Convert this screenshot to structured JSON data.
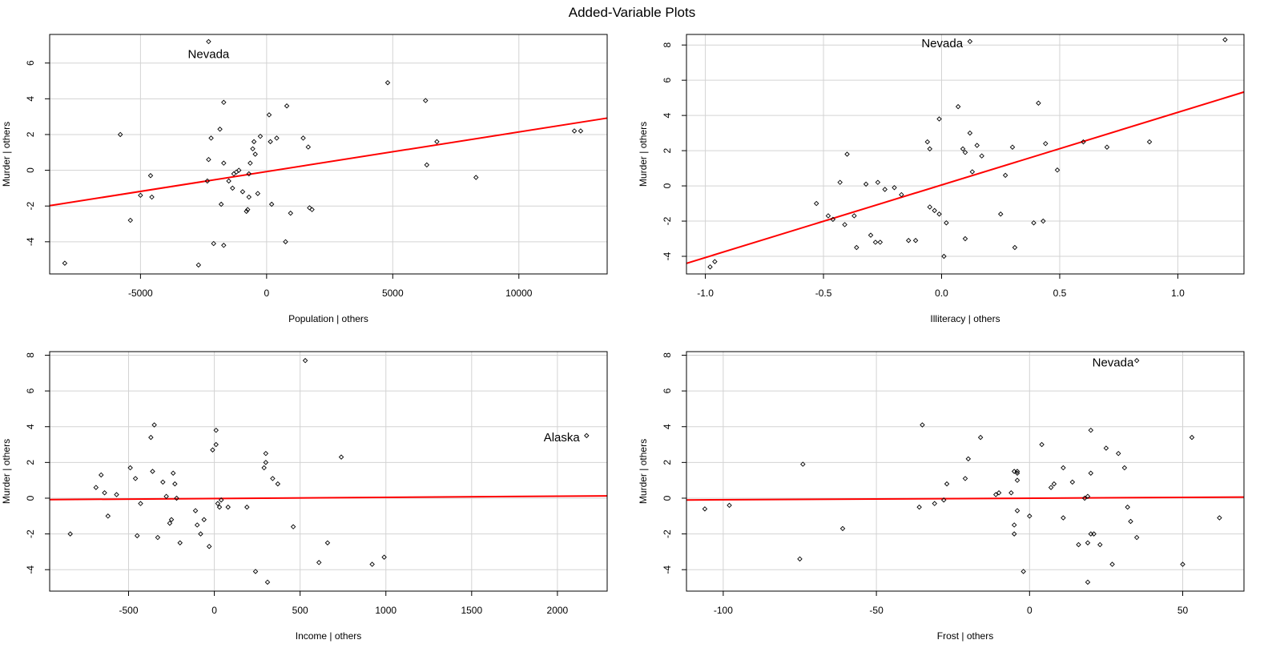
{
  "title": "Added-Variable Plots",
  "colors": {
    "fit_line": "#ff0000",
    "grid": "#d3d3d3",
    "points": "#000000",
    "frame": "#000000"
  },
  "chart_data": [
    {
      "type": "scatter",
      "xlabel": "Population | others",
      "ylabel": "Murder  | others",
      "xlim": [
        -8600,
        13500
      ],
      "ylim": [
        -5.8,
        7.6
      ],
      "xticks": [
        -5000,
        0,
        5000,
        10000
      ],
      "yticks": [
        -4,
        -2,
        0,
        2,
        4,
        6
      ],
      "xtick_labels": [
        "-5000",
        "0",
        "5000",
        "10000"
      ],
      "ytick_labels": [
        "-4",
        "-2",
        "0",
        "2",
        "4",
        "6"
      ],
      "grid": true,
      "fit_line": {
        "x": [
          -8600,
          13500
        ],
        "y": [
          -1.98,
          2.92
        ]
      },
      "annotations": [
        {
          "text": "Nevada",
          "x": -2300,
          "y": 6.5,
          "anchor": "middle"
        }
      ],
      "points": [
        [
          -8000,
          -5.2
        ],
        [
          -5800,
          2.0
        ],
        [
          -5400,
          -2.8
        ],
        [
          -5000,
          -1.4
        ],
        [
          -4600,
          -0.3
        ],
        [
          -4550,
          -1.5
        ],
        [
          -2700,
          -5.3
        ],
        [
          -2350,
          -0.6
        ],
        [
          -2300,
          0.6
        ],
        [
          -2300,
          7.2
        ],
        [
          -2200,
          1.8
        ],
        [
          -2100,
          -4.1
        ],
        [
          -1850,
          2.3
        ],
        [
          -1800,
          -1.9
        ],
        [
          -1700,
          3.8
        ],
        [
          -1700,
          0.4
        ],
        [
          -1700,
          -4.2
        ],
        [
          -1500,
          -0.6
        ],
        [
          -1350,
          -1.0
        ],
        [
          -1300,
          -0.2
        ],
        [
          -1200,
          -0.1
        ],
        [
          -1100,
          0.0
        ],
        [
          -950,
          -1.2
        ],
        [
          -800,
          -2.3
        ],
        [
          -750,
          -2.2
        ],
        [
          -700,
          -1.5
        ],
        [
          -700,
          -0.2
        ],
        [
          -650,
          0.4
        ],
        [
          -550,
          1.2
        ],
        [
          -500,
          1.6
        ],
        [
          -450,
          0.9
        ],
        [
          -350,
          -1.3
        ],
        [
          -250,
          1.9
        ],
        [
          100,
          3.1
        ],
        [
          150,
          1.6
        ],
        [
          200,
          -1.9
        ],
        [
          400,
          1.8
        ],
        [
          750,
          -4.0
        ],
        [
          800,
          3.6
        ],
        [
          950,
          -2.4
        ],
        [
          1450,
          1.8
        ],
        [
          1650,
          1.3
        ],
        [
          1700,
          -2.1
        ],
        [
          1800,
          -2.2
        ],
        [
          4800,
          4.9
        ],
        [
          6300,
          3.9
        ],
        [
          6350,
          0.3
        ],
        [
          6750,
          1.6
        ],
        [
          8300,
          -0.4
        ],
        [
          12200,
          2.2
        ],
        [
          12450,
          2.2
        ]
      ]
    },
    {
      "type": "scatter",
      "xlabel": "Illiteracy | others",
      "ylabel": "Murder  | others",
      "xlim": [
        -1.08,
        1.28
      ],
      "ylim": [
        -5.0,
        8.6
      ],
      "xticks": [
        -1.0,
        -0.5,
        0.0,
        0.5,
        1.0
      ],
      "yticks": [
        -4,
        -2,
        0,
        2,
        4,
        6,
        8
      ],
      "xtick_labels": [
        "-1.0",
        "-0.5",
        "0.0",
        "0.5",
        "1.0"
      ],
      "ytick_labels": [
        "-4",
        "-2",
        "0",
        "2",
        "4",
        "6",
        "8"
      ],
      "grid": true,
      "fit_line": {
        "x": [
          -1.08,
          1.28
        ],
        "y": [
          -4.4,
          5.33
        ]
      },
      "annotations": [
        {
          "text": "Nevada",
          "x": 0.09,
          "y": 8.1,
          "anchor": "end"
        }
      ],
      "points": [
        [
          -0.98,
          -4.6
        ],
        [
          -0.96,
          -4.3
        ],
        [
          -0.53,
          -1.0
        ],
        [
          -0.48,
          -1.7
        ],
        [
          -0.46,
          -1.9
        ],
        [
          -0.43,
          0.2
        ],
        [
          -0.41,
          -2.2
        ],
        [
          -0.4,
          1.8
        ],
        [
          -0.37,
          -1.7
        ],
        [
          -0.36,
          -3.5
        ],
        [
          -0.32,
          0.1
        ],
        [
          -0.3,
          -2.8
        ],
        [
          -0.28,
          -3.2
        ],
        [
          -0.27,
          0.2
        ],
        [
          -0.26,
          -3.2
        ],
        [
          -0.24,
          -0.2
        ],
        [
          -0.2,
          -0.1
        ],
        [
          -0.17,
          -0.5
        ],
        [
          -0.14,
          -3.1
        ],
        [
          -0.11,
          -3.1
        ],
        [
          -0.06,
          2.5
        ],
        [
          -0.05,
          2.1
        ],
        [
          -0.05,
          -1.2
        ],
        [
          -0.03,
          -1.4
        ],
        [
          -0.01,
          3.8
        ],
        [
          -0.01,
          -1.6
        ],
        [
          0.01,
          -4.0
        ],
        [
          0.02,
          -2.1
        ],
        [
          0.07,
          4.5
        ],
        [
          0.09,
          2.1
        ],
        [
          0.1,
          1.9
        ],
        [
          0.1,
          -3.0
        ],
        [
          0.12,
          3.0
        ],
        [
          0.12,
          8.2
        ],
        [
          0.13,
          0.8
        ],
        [
          0.15,
          2.3
        ],
        [
          0.17,
          1.7
        ],
        [
          0.25,
          -1.6
        ],
        [
          0.27,
          0.6
        ],
        [
          0.3,
          2.2
        ],
        [
          0.31,
          -3.5
        ],
        [
          0.39,
          -2.1
        ],
        [
          0.41,
          4.7
        ],
        [
          0.43,
          -2.0
        ],
        [
          0.44,
          2.4
        ],
        [
          0.49,
          0.9
        ],
        [
          0.6,
          2.5
        ],
        [
          0.7,
          2.2
        ],
        [
          0.88,
          2.5
        ],
        [
          1.2,
          8.3
        ]
      ]
    },
    {
      "type": "scatter",
      "xlabel": "Income | others",
      "ylabel": "Murder  | others",
      "xlim": [
        -960,
        2290
      ],
      "ylim": [
        -5.2,
        8.2
      ],
      "xticks": [
        -500,
        0,
        500,
        1000,
        1500,
        2000
      ],
      "yticks": [
        -4,
        -2,
        0,
        2,
        4,
        6,
        8
      ],
      "xtick_labels": [
        "-500",
        "0",
        "500",
        "1000",
        "1500",
        "2000"
      ],
      "ytick_labels": [
        "-4",
        "-2",
        "0",
        "2",
        "4",
        "6",
        "8"
      ],
      "grid": true,
      "fit_line": {
        "x": [
          -960,
          2290
        ],
        "y": [
          -0.08,
          0.13
        ]
      },
      "annotations": [
        {
          "text": "Alaska",
          "x": 2130,
          "y": 3.4,
          "anchor": "end"
        }
      ],
      "points": [
        [
          -840,
          -2.0
        ],
        [
          -690,
          0.6
        ],
        [
          -660,
          1.3
        ],
        [
          -640,
          0.3
        ],
        [
          -620,
          -1.0
        ],
        [
          -570,
          0.2
        ],
        [
          -490,
          1.7
        ],
        [
          -460,
          1.1
        ],
        [
          -450,
          -2.1
        ],
        [
          -430,
          -0.3
        ],
        [
          -370,
          3.4
        ],
        [
          -360,
          1.5
        ],
        [
          -350,
          4.1
        ],
        [
          -330,
          -2.2
        ],
        [
          -300,
          0.9
        ],
        [
          -280,
          0.1
        ],
        [
          -260,
          -1.4
        ],
        [
          -250,
          -1.2
        ],
        [
          -240,
          1.4
        ],
        [
          -230,
          0.8
        ],
        [
          -220,
          0.0
        ],
        [
          -200,
          -2.5
        ],
        [
          -110,
          -0.7
        ],
        [
          -100,
          -1.5
        ],
        [
          -80,
          -2.0
        ],
        [
          -60,
          -1.2
        ],
        [
          -30,
          -2.7
        ],
        [
          -10,
          2.7
        ],
        [
          10,
          3.0
        ],
        [
          10,
          3.8
        ],
        [
          20,
          -0.3
        ],
        [
          30,
          -0.5
        ],
        [
          40,
          -0.1
        ],
        [
          80,
          -0.5
        ],
        [
          190,
          -0.5
        ],
        [
          240,
          -4.1
        ],
        [
          290,
          1.7
        ],
        [
          300,
          2.0
        ],
        [
          300,
          2.5
        ],
        [
          310,
          -4.7
        ],
        [
          340,
          1.1
        ],
        [
          370,
          0.8
        ],
        [
          460,
          -1.6
        ],
        [
          530,
          7.7
        ],
        [
          610,
          -3.6
        ],
        [
          660,
          -2.5
        ],
        [
          740,
          2.3
        ],
        [
          920,
          -3.7
        ],
        [
          990,
          -3.3
        ],
        [
          2170,
          3.5
        ]
      ]
    },
    {
      "type": "scatter",
      "xlabel": "Frost | others",
      "ylabel": "Murder  | others",
      "xlim": [
        -112,
        70
      ],
      "ylim": [
        -5.2,
        8.2
      ],
      "xticks": [
        -100,
        -50,
        0,
        50
      ],
      "yticks": [
        -4,
        -2,
        0,
        2,
        4,
        6,
        8
      ],
      "xtick_labels": [
        "-100",
        "-50",
        "0",
        "50"
      ],
      "ytick_labels": [
        "-4",
        "-2",
        "0",
        "2",
        "4",
        "6",
        "8"
      ],
      "grid": true,
      "fit_line": {
        "x": [
          -112,
          70
        ],
        "y": [
          -0.1,
          0.06
        ]
      },
      "annotations": [
        {
          "text": "Nevada",
          "x": 34,
          "y": 7.6,
          "anchor": "end"
        }
      ],
      "points": [
        [
          -106,
          -0.6
        ],
        [
          -98,
          -0.4
        ],
        [
          -75,
          -3.4
        ],
        [
          -74,
          1.9
        ],
        [
          -61,
          -1.7
        ],
        [
          -36,
          -0.5
        ],
        [
          -35,
          4.1
        ],
        [
          -31,
          -0.3
        ],
        [
          -28,
          -0.1
        ],
        [
          -27,
          0.8
        ],
        [
          -21,
          1.1
        ],
        [
          -20,
          2.2
        ],
        [
          -16,
          3.4
        ],
        [
          -11,
          0.2
        ],
        [
          -10,
          0.3
        ],
        [
          -6,
          0.3
        ],
        [
          -5,
          1.5
        ],
        [
          -5,
          -2.0
        ],
        [
          -5,
          -1.5
        ],
        [
          -4,
          -0.7
        ],
        [
          -4,
          1.0
        ],
        [
          -4,
          1.4
        ],
        [
          -4,
          1.5
        ],
        [
          -2,
          -4.1
        ],
        [
          0,
          -1.0
        ],
        [
          4,
          3.0
        ],
        [
          7,
          0.6
        ],
        [
          8,
          0.8
        ],
        [
          11,
          1.7
        ],
        [
          11,
          -1.1
        ],
        [
          14,
          0.9
        ],
        [
          16,
          -2.6
        ],
        [
          18,
          0.0
        ],
        [
          19,
          0.1
        ],
        [
          19,
          -4.7
        ],
        [
          19,
          -2.5
        ],
        [
          20,
          -2.0
        ],
        [
          20,
          1.4
        ],
        [
          20,
          3.8
        ],
        [
          21,
          -2.0
        ],
        [
          23,
          -2.6
        ],
        [
          25,
          2.8
        ],
        [
          27,
          -3.7
        ],
        [
          29,
          2.5
        ],
        [
          31,
          1.7
        ],
        [
          32,
          -0.5
        ],
        [
          33,
          -1.3
        ],
        [
          35,
          -2.2
        ],
        [
          35,
          7.7
        ],
        [
          50,
          -3.7
        ],
        [
          53,
          3.4
        ],
        [
          62,
          -1.1
        ]
      ]
    }
  ]
}
